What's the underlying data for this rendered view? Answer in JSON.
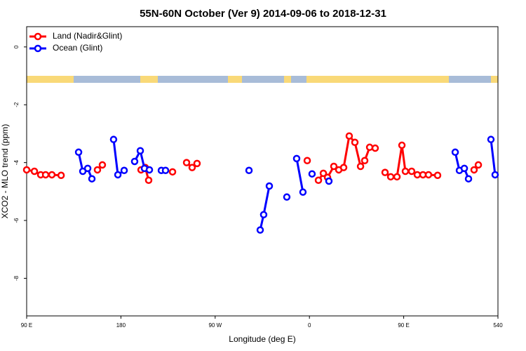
{
  "chart_data": {
    "type": "line",
    "title": "55N-60N October (Ver 9)   2014-09-06 to 2018-12-31",
    "x_label": "Longitude (deg E)",
    "y_label": "XCO2 - MLO trend (ppm)",
    "xlim": [
      90,
      540
    ],
    "ylim": [
      -9.3,
      0.7
    ],
    "xticks": [
      {
        "value": 90,
        "label": "90 E"
      },
      180,
      {
        "value": 270,
        "label": "90 W"
      },
      {
        "value": 360,
        "label": "0"
      },
      {
        "value": 450,
        "label": "90 E"
      },
      540
    ],
    "yticks": [
      0,
      -2,
      -4,
      -6,
      -8
    ],
    "legend": "top-left",
    "series": [
      {
        "name": "Land (Nadir&Glint)",
        "color": "#ff0000",
        "x": [
          90.0,
          97.4,
          103.4,
          108.1,
          114.1,
          122.9,
          null,
          157.6,
          162.3,
          null,
          199.2,
          203.2,
          206.5,
          null,
          229.3,
          null,
          242.7,
          248.0,
          252.7,
          null,
          357.9,
          null,
          368.6,
          373.3,
          377.3,
          383.3,
          388.0,
          392.7,
          398.0,
          403.4,
          408.8,
          412.8,
          417.5,
          422.8,
          null,
          432.2,
          437.6,
          443.6,
          448.3,
          451.6,
          457.6,
          463.0,
          468.4,
          473.7,
          482.4,
          null,
          517.2,
          521.3
        ],
        "values": [
          -4.25,
          -4.3,
          -4.42,
          -4.42,
          -4.42,
          -4.44,
          null,
          -4.25,
          -4.08,
          null,
          -4.25,
          -4.17,
          -4.61,
          null,
          -4.32,
          null,
          -4.0,
          -4.17,
          -4.03,
          null,
          -3.93,
          null,
          -4.61,
          -4.37,
          -4.51,
          -4.13,
          -4.25,
          -4.17,
          -3.08,
          -3.3,
          -4.13,
          -3.93,
          -3.47,
          -3.5,
          null,
          -4.34,
          -4.49,
          -4.49,
          -3.4,
          -4.3,
          -4.3,
          -4.42,
          -4.42,
          -4.42,
          -4.44,
          null,
          -4.25,
          -4.08
        ]
      },
      {
        "name": "Ocean (Glint)",
        "color": "#0000ff",
        "x": [
          139.6,
          143.6,
          148.3,
          152.3,
          null,
          173.0,
          177.1,
          183.1,
          null,
          193.1,
          198.5,
          202.5,
          207.2,
          null,
          218.6,
          222.6,
          null,
          302.3,
          null,
          313.0,
          316.3,
          321.7,
          null,
          338.4,
          null,
          347.8,
          353.8,
          null,
          362.5,
          null,
          378.6,
          null,
          499.2,
          503.2,
          507.9,
          511.9,
          null,
          533.3,
          537.3
        ],
        "values": [
          -3.64,
          -4.3,
          -4.2,
          -4.56,
          null,
          -3.2,
          -4.42,
          -4.27,
          null,
          -3.96,
          -3.59,
          -4.2,
          -4.25,
          null,
          -4.27,
          -4.27,
          null,
          -4.27,
          null,
          -6.33,
          -5.8,
          -4.81,
          null,
          -5.19,
          null,
          -3.86,
          -5.02,
          null,
          -4.39,
          null,
          -4.64,
          null,
          -3.64,
          -4.27,
          -4.2,
          -4.56,
          null,
          -3.2,
          -4.42
        ]
      }
    ]
  }
}
